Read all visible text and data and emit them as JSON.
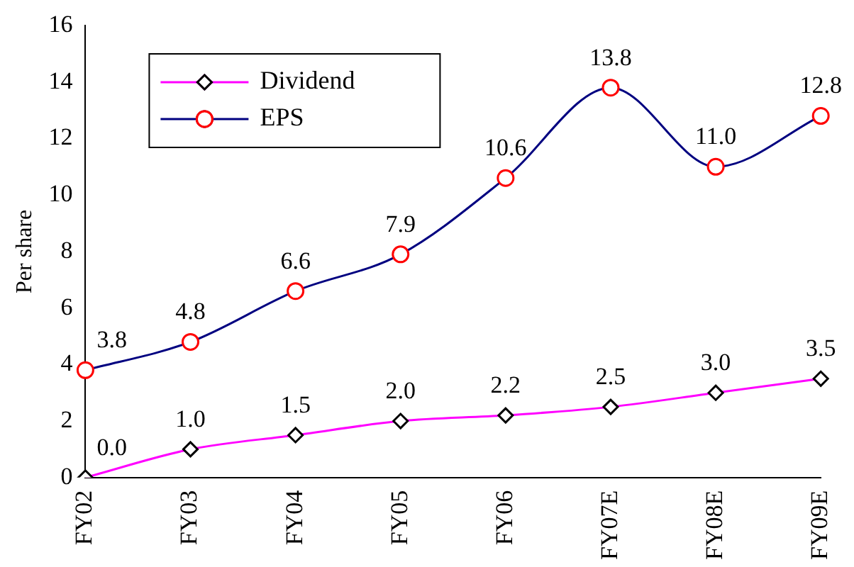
{
  "chart_data": {
    "type": "line",
    "ylabel": "Per share",
    "categories": [
      "FY02",
      "FY03",
      "FY04",
      "FY05",
      "FY06",
      "FY07E",
      "FY08E",
      "FY09E"
    ],
    "series": [
      {
        "name": "Dividend",
        "color": "#ff00ff",
        "marker": "diamond",
        "values": [
          0.0,
          1.0,
          1.5,
          2.0,
          2.2,
          2.5,
          3.0,
          3.5
        ],
        "value_labels": [
          "0.0",
          "1.0",
          "1.5",
          "2.0",
          "2.2",
          "2.5",
          "3.0",
          "3.5"
        ]
      },
      {
        "name": "EPS",
        "color": "#000080",
        "marker": "circle",
        "values": [
          3.8,
          4.8,
          6.6,
          7.9,
          10.6,
          13.8,
          11.0,
          12.8
        ],
        "value_labels": [
          "3.8",
          "4.8",
          "6.6",
          "7.9",
          "10.6",
          "13.8",
          "11.0",
          "12.8"
        ]
      }
    ],
    "ylim": [
      0,
      16
    ],
    "yticks": [
      0,
      2,
      4,
      6,
      8,
      10,
      12,
      14,
      16
    ],
    "grid": false,
    "legend": "top left"
  }
}
